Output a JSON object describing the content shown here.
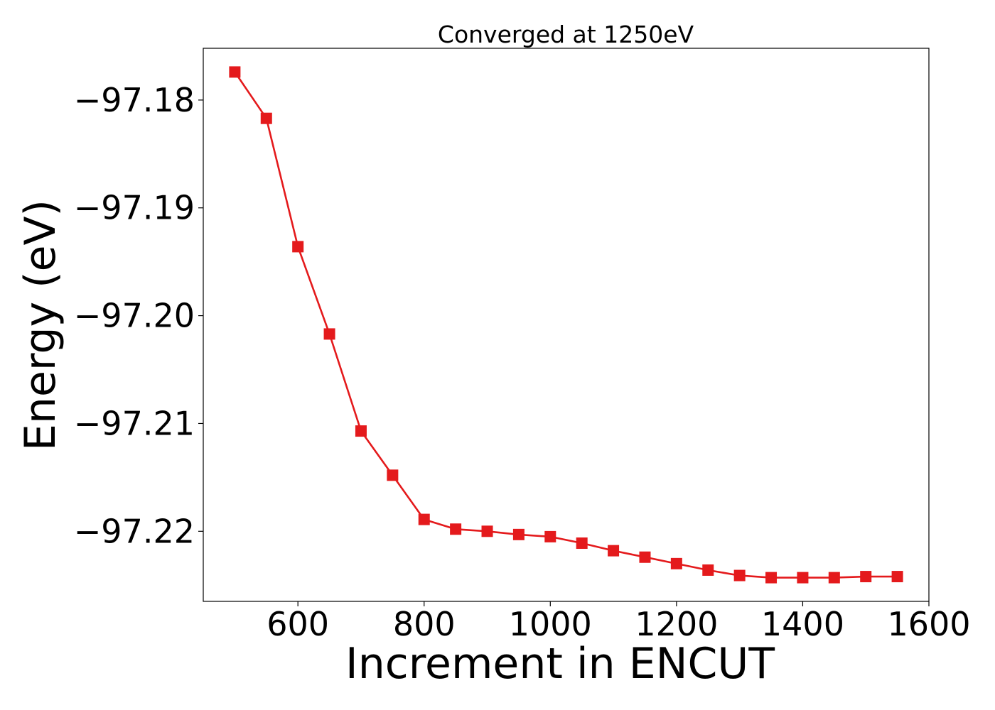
{
  "chart_data": {
    "type": "line",
    "title": "Converged at 1250eV",
    "xlabel": "Increment in ENCUT",
    "ylabel": "Energy (eV)",
    "xlim": [
      450,
      1600
    ],
    "ylim": [
      -97.2265,
      -97.1752
    ],
    "xticks": [
      600,
      800,
      1000,
      1200,
      1400,
      1600
    ],
    "yticks": [
      -97.18,
      -97.19,
      -97.2,
      -97.21,
      -97.22
    ],
    "xtick_labels": [
      "600",
      "800",
      "1000",
      "1200",
      "1400",
      "1600"
    ],
    "ytick_labels": [
      "−97.18",
      "−97.19",
      "−97.20",
      "−97.21",
      "−97.22"
    ],
    "grid": false,
    "marker": "square",
    "color": "#e41a1c",
    "series": [
      {
        "x": [
          500,
          550,
          600,
          650,
          700,
          750,
          800,
          850,
          900,
          950,
          1000,
          1050,
          1100,
          1150,
          1200,
          1250,
          1300,
          1350,
          1400,
          1450,
          1500,
          1550
        ],
        "y": [
          -97.1774,
          -97.1817,
          -97.1936,
          -97.2017,
          -97.2107,
          -97.2148,
          -97.2189,
          -97.2198,
          -97.22,
          -97.2203,
          -97.2205,
          -97.2211,
          -97.2218,
          -97.2224,
          -97.223,
          -97.2236,
          -97.2241,
          -97.2243,
          -97.2243,
          -97.2243,
          -97.2242,
          -97.2242
        ]
      }
    ]
  }
}
